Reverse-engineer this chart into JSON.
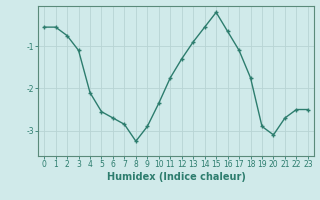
{
  "x": [
    0,
    1,
    2,
    3,
    4,
    5,
    6,
    7,
    8,
    9,
    10,
    11,
    12,
    13,
    14,
    15,
    16,
    17,
    18,
    19,
    20,
    21,
    22,
    23
  ],
  "y": [
    -0.55,
    -0.55,
    -0.75,
    -1.1,
    -2.1,
    -2.55,
    -2.7,
    -2.85,
    -3.25,
    -2.9,
    -2.35,
    -1.75,
    -1.3,
    -0.9,
    -0.55,
    -0.2,
    -0.65,
    -1.1,
    -1.75,
    -2.9,
    -3.1,
    -2.7,
    -2.5,
    -2.5
  ],
  "line_color": "#2d7d6e",
  "marker": "+",
  "marker_size": 3,
  "bg_color": "#d0eaea",
  "grid_color": "#b8d4d4",
  "xlabel": "Humidex (Indice chaleur)",
  "yticks": [
    -3,
    -2,
    -1
  ],
  "ylim": [
    -3.6,
    -0.05
  ],
  "xlim": [
    -0.5,
    23.5
  ],
  "xticks": [
    0,
    1,
    2,
    3,
    4,
    5,
    6,
    7,
    8,
    9,
    10,
    11,
    12,
    13,
    14,
    15,
    16,
    17,
    18,
    19,
    20,
    21,
    22,
    23
  ],
  "linewidth": 1.0,
  "tick_label_fontsize": 5.5,
  "xlabel_fontsize": 7,
  "spine_color": "#5a8a7a"
}
